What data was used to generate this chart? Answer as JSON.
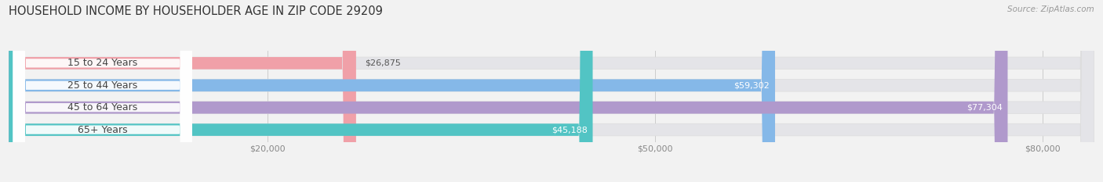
{
  "title": "HOUSEHOLD INCOME BY HOUSEHOLDER AGE IN ZIP CODE 29209",
  "source": "Source: ZipAtlas.com",
  "categories": [
    "15 to 24 Years",
    "25 to 44 Years",
    "45 to 64 Years",
    "65+ Years"
  ],
  "values": [
    26875,
    59302,
    77304,
    45188
  ],
  "bar_colors": [
    "#f0a0a8",
    "#85b8e8",
    "#b099cc",
    "#52c4c4"
  ],
  "background_color": "#f2f2f2",
  "bar_bg_color": "#e4e4e8",
  "label_fontsize": 9,
  "value_fontsize": 8,
  "title_fontsize": 10.5,
  "xmax": 84000,
  "xmin": 0,
  "xticks": [
    20000,
    50000,
    80000
  ],
  "xtick_labels": [
    "$20,000",
    "$50,000",
    "$80,000"
  ],
  "bar_height": 0.55,
  "label_pill_color": "#ffffff",
  "label_text_color": "#444444",
  "value_color_inside": "#ffffff",
  "value_color_outside": "#555555"
}
